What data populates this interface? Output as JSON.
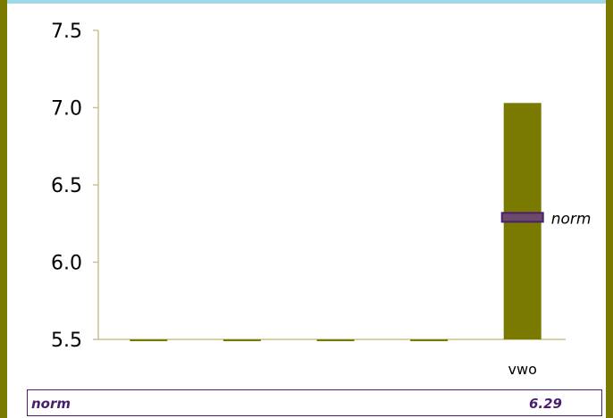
{
  "chart_data": {
    "type": "bar",
    "categories": [
      "",
      "",
      "",
      "",
      "vwo"
    ],
    "values": [
      5.5,
      5.5,
      5.5,
      5.5,
      7.03
    ],
    "ylim": [
      5.5,
      7.5
    ],
    "yticks": [
      "5.5",
      "6.0",
      "6.5",
      "7.0",
      "7.5"
    ],
    "norm": {
      "label": "norm",
      "value": 6.29
    },
    "grid": false
  },
  "legend": {
    "name": "norm",
    "value": "6.29"
  },
  "colors": {
    "bar": "#7a7a00",
    "norm_fill": "#6b4a6b",
    "norm_stroke": "#4a1f6f",
    "axis": "#c9c28f",
    "background_frame": "#7a7a00",
    "top_strip": "#9fd9e8"
  }
}
